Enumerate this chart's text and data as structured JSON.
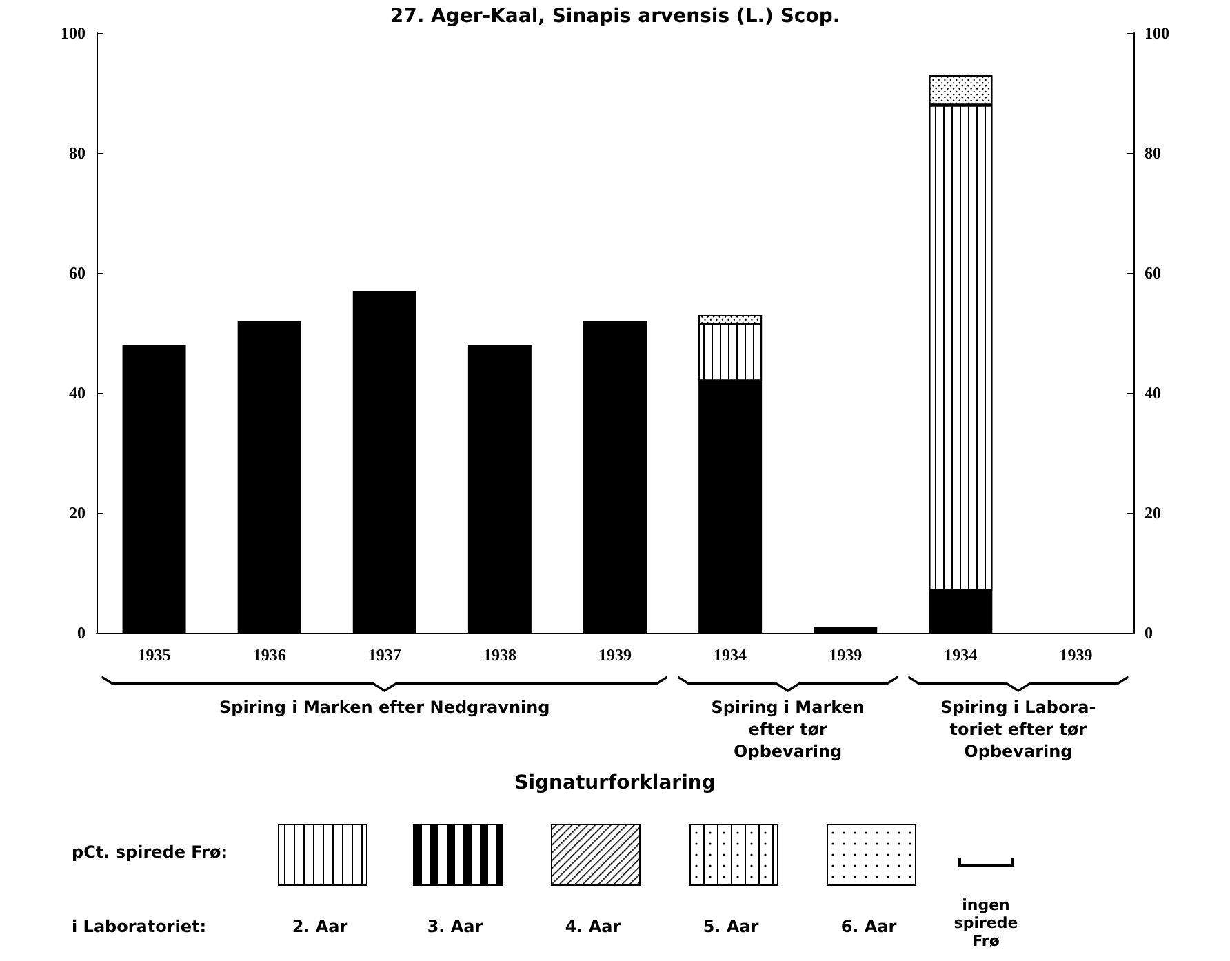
{
  "chart_data": {
    "type": "bar",
    "title": "27. Ager-Kaal, Sinapis arvensis (L.) Scop.",
    "categories": [
      "1935",
      "1936",
      "1937",
      "1938",
      "1939",
      "1934",
      "1939",
      "1934",
      "1939"
    ],
    "stacked": true,
    "series": [
      {
        "color": "#000000",
        "values": [
          48,
          52,
          57,
          48,
          52,
          42,
          1,
          7,
          null
        ]
      },
      {
        "color": "#ffffff",
        "values": [
          null,
          null,
          null,
          null,
          null,
          9.5,
          null,
          81,
          null
        ]
      },
      {
        "color": "#ffffff",
        "values": [
          null,
          null,
          null,
          null,
          null,
          1.5,
          null,
          5,
          null
        ]
      }
    ],
    "ylim": [
      0,
      100
    ],
    "yticks": [
      0,
      20,
      40,
      60,
      80,
      100
    ],
    "y2lim": [
      0,
      100
    ],
    "y2ticks": [
      0,
      20,
      40,
      60,
      80,
      100
    ],
    "grid": false,
    "annotations": [
      "Spiring i Marken efter Nedgravning",
      "Spiring i Marken\nefter tør\nOpbevaring",
      "Spiring i Labora-\ntoriet efter tør\nOpbevaring",
      "Signaturforklaring",
      "pCt. spirede Frø:",
      "i Laboratoriet:",
      "2. Aar",
      "3. Aar",
      "4. Aar",
      "5. Aar",
      "6. Aar",
      "ingen\nspirede\nFrø"
    ]
  }
}
